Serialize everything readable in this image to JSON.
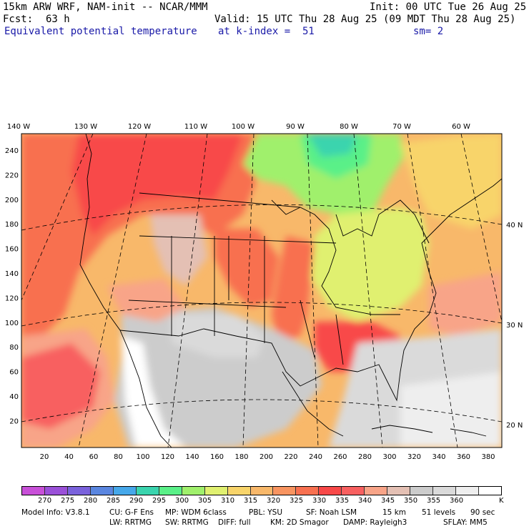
{
  "header": {
    "line1_left": "15km ARW WRF, NAM-init -- NCAR/MMM",
    "line1_right": "Init: 00 UTC Tue 26 Aug 25",
    "fcst_label": "Fcst:",
    "fcst_value": "63 h",
    "valid": "Valid: 15 UTC Thu 28 Aug 25 (09 MDT Thu 28 Aug 25)",
    "field": "Equivalent potential temperature",
    "level": "at k-index =  51",
    "smooth": "sm= 2"
  },
  "map": {
    "lon_labels": [
      "140 W",
      "130 W",
      "120 W",
      "110 W",
      "100 W",
      "90 W",
      "80 W",
      "70 W",
      "60 W"
    ],
    "lat_labels": [
      "40 N",
      "30 N",
      "20 N"
    ],
    "y_grid_labels": [
      "240",
      "220",
      "200",
      "180",
      "160",
      "140",
      "120",
      "100",
      "80",
      "60",
      "40",
      "20"
    ],
    "x_grid_labels": [
      "20",
      "40",
      "60",
      "80",
      "100",
      "120",
      "140",
      "160",
      "180",
      "200",
      "220",
      "240",
      "260",
      "280",
      "300",
      "320",
      "340",
      "360",
      "380"
    ]
  },
  "legend": {
    "colors": [
      "#c850d8",
      "#9a50d8",
      "#7a62dc",
      "#5a86e0",
      "#46a8ea",
      "#3ad4ae",
      "#5af088",
      "#a0f06c",
      "#e0f070",
      "#f8d46a",
      "#f8b86a",
      "#f89460",
      "#f87050",
      "#f84848",
      "#f86060",
      "#f8a488",
      "#e4c0b4",
      "#cccccc",
      "#dadada",
      "#eeeeee",
      "#ffffff"
    ],
    "values": [
      "270",
      "275",
      "280",
      "285",
      "290",
      "295",
      "300",
      "305",
      "310",
      "315",
      "320",
      "325",
      "330",
      "335",
      "340",
      "345",
      "350",
      "355",
      "360"
    ],
    "unit": "K"
  },
  "footer": {
    "line1": [
      "Model Info: V3.8.1",
      "CU: G-F Ens",
      "MP: WDM 6class",
      "PBL: YSU",
      "SF: Noah LSM",
      "15 km",
      "51 levels",
      "90 sec"
    ],
    "line2": [
      "LW: RRTMG",
      "SW: RRTMG",
      "DIFF: full",
      "KM: 2D Smagor",
      "DAMP: Rayleigh3",
      "SFLAY: MM5"
    ]
  }
}
